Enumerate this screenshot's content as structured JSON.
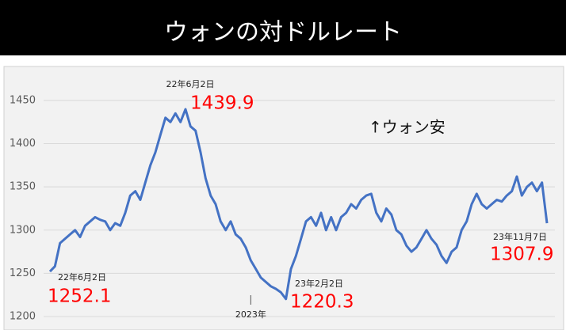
{
  "chart_data": {
    "type": "line",
    "title": "ウォンの対ドルレート",
    "categories": [
      null,
      null,
      null,
      null,
      null,
      null,
      null,
      null,
      null,
      null,
      null,
      null,
      null,
      null,
      null,
      null,
      null,
      null,
      null,
      null,
      null,
      null,
      null,
      null,
      null,
      null,
      null,
      null,
      null,
      null,
      null,
      null,
      null,
      null,
      null,
      null,
      null,
      null,
      null,
      null,
      "2023年",
      null,
      null,
      null,
      null,
      null,
      null,
      null,
      null,
      null,
      null,
      null,
      null,
      null,
      null,
      null,
      null,
      null,
      null,
      null,
      null,
      null,
      null,
      null,
      null,
      null,
      null,
      null,
      null,
      null,
      null,
      null,
      null,
      null,
      null,
      null,
      null,
      null,
      null,
      null,
      null,
      null,
      null,
      null,
      null,
      null,
      null,
      null,
      null,
      null,
      null,
      null,
      null,
      null,
      null,
      null,
      null,
      null,
      null,
      null
    ],
    "series": [
      {
        "color": "#4472c4",
        "values": [
          1252.1,
          1258,
          1285,
          1290,
          1295,
          1300,
          1292,
          1305,
          1310,
          1315,
          1312,
          1310,
          1300,
          1308,
          1305,
          1320,
          1340,
          1345,
          1335,
          1355,
          1375,
          1390,
          1410,
          1430,
          1425,
          1435,
          1425,
          1439.9,
          1420,
          1415,
          1390,
          1360,
          1340,
          1330,
          1310,
          1300,
          1310,
          1295,
          1290,
          1280,
          1265,
          1255,
          1245,
          1240,
          1235,
          1232,
          1228,
          1220.3,
          1255,
          1270,
          1290,
          1310,
          1315,
          1305,
          1320,
          1300,
          1315,
          1300,
          1315,
          1320,
          1330,
          1325,
          1335,
          1340,
          1342,
          1320,
          1310,
          1325,
          1318,
          1300,
          1295,
          1282,
          1275,
          1280,
          1290,
          1300,
          1290,
          1283,
          1270,
          1262,
          1275,
          1280,
          1300,
          1310,
          1330,
          1342,
          1330,
          1325,
          1330,
          1335,
          1333,
          1340,
          1345,
          1362,
          1340,
          1350,
          1355,
          1345,
          1355,
          1307.9
        ]
      }
    ],
    "ylim": [
      1200,
      1460
    ],
    "yticks": [
      1200,
      1250,
      1300,
      1350,
      1400,
      1450
    ],
    "grid": true,
    "annotations": [
      "22年6月2日",
      "22年6月2日",
      "23年2月2日",
      "23年11月7日",
      "↑ウォン安"
    ]
  }
}
